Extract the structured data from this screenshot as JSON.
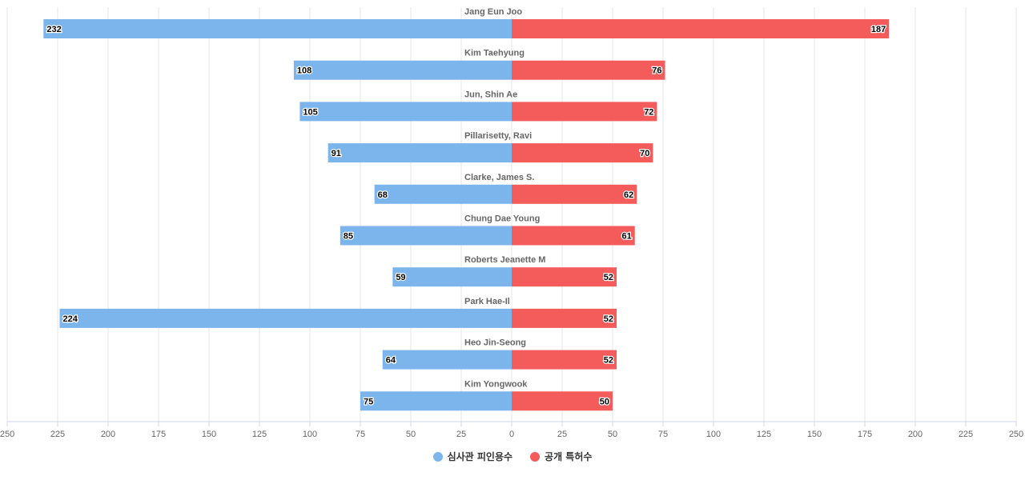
{
  "chart_data": {
    "type": "bar",
    "orientation": "horizontal-diverging",
    "categories": [
      "Jang Eun Joo",
      "Kim Taehyung",
      "Jun, Shin Ae",
      "Pillarisetty, Ravi",
      "Clarke, James S.",
      "Chung Dae Young",
      "Roberts Jeanette M",
      "Park Hae-Il",
      "Heo Jin-Seong",
      "Kim Yongwook"
    ],
    "series": [
      {
        "name": "심사관 피인용수",
        "side": "left",
        "color": "#7cb5ec",
        "values": [
          232,
          108,
          105,
          91,
          68,
          85,
          59,
          224,
          64,
          75
        ]
      },
      {
        "name": "공개 특허수",
        "side": "right",
        "color": "#f45b5b",
        "values": [
          187,
          76,
          72,
          70,
          62,
          61,
          52,
          52,
          52,
          50
        ]
      }
    ],
    "xlim": [
      -250,
      250
    ],
    "x_ticks": [
      "250",
      "225",
      "200",
      "175",
      "150",
      "125",
      "100",
      "75",
      "50",
      "25",
      "0",
      "25",
      "50",
      "75",
      "100",
      "125",
      "150",
      "175",
      "200",
      "225",
      "250"
    ],
    "grid": true,
    "legend": "bottom-center"
  }
}
